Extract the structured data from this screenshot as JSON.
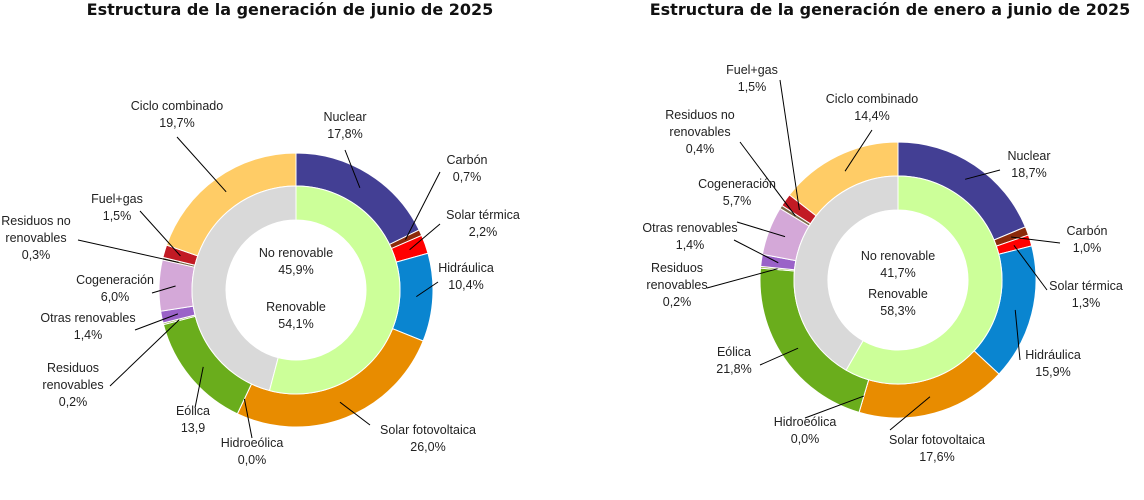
{
  "colors": {
    "Nuclear": "#433f94",
    "Carbón": "#8b2a0b",
    "Solar térmica": "#ff0000",
    "Hidráulica": "#0a85d0",
    "Solar fotovoltaica": "#e88c00",
    "Hidroeólica": "#6aa64a",
    "Eólica": "#6aad1c",
    "Residuos renovables": "#8da33a",
    "Otras renovables": "#9a62c8",
    "Cogeneración": "#d4a8d8",
    "Residuos no renovables": "#7b6a4a",
    "Fuel+gas": "#c21a24",
    "Ciclo combinado": "#ffcc66",
    "No renovable": "#d9d9d9",
    "Renovable": "#ccff99"
  },
  "chart_data": [
    {
      "type": "pie",
      "title": "Estructura de la generación de junio de 2025",
      "inner": [
        {
          "name": "No renovable",
          "value": 45.9,
          "label": "45,9%"
        },
        {
          "name": "Renovable",
          "value": 54.1,
          "label": "54,1%"
        }
      ],
      "outer": [
        {
          "name": "Nuclear",
          "value": 17.8,
          "label": "17,8%"
        },
        {
          "name": "Carbón",
          "value": 0.7,
          "label": "0,7%"
        },
        {
          "name": "Solar térmica",
          "value": 2.2,
          "label": "2,2%"
        },
        {
          "name": "Hidráulica",
          "value": 10.4,
          "label": "10,4%"
        },
        {
          "name": "Solar fotovoltaica",
          "value": 26.0,
          "label": "26,0%"
        },
        {
          "name": "Hidroeólica",
          "value": 0.0,
          "label": "0,0%"
        },
        {
          "name": "Eólica",
          "value": 13.9,
          "label": "13,9"
        },
        {
          "name": "Residuos renovables",
          "value": 0.2,
          "label": "0,2%"
        },
        {
          "name": "Otras renovables",
          "value": 1.4,
          "label": "1,4%"
        },
        {
          "name": "Cogeneración",
          "value": 6.0,
          "label": "6,0%"
        },
        {
          "name": "Residuos no renovables",
          "value": 0.3,
          "label": "0,3%"
        },
        {
          "name": "Fuel+gas",
          "value": 1.5,
          "label": "1,5%"
        },
        {
          "name": "Ciclo combinado",
          "value": 19.7,
          "label": "19,7%"
        }
      ]
    },
    {
      "type": "pie",
      "title": "Estructura de la generación de enero a junio de 2025",
      "inner": [
        {
          "name": "No renovable",
          "value": 41.7,
          "label": "41,7%"
        },
        {
          "name": "Renovable",
          "value": 58.3,
          "label": "58,3%"
        }
      ],
      "outer": [
        {
          "name": "Nuclear",
          "value": 18.7,
          "label": "18,7%"
        },
        {
          "name": "Carbón",
          "value": 1.0,
          "label": "1,0%"
        },
        {
          "name": "Solar térmica",
          "value": 1.3,
          "label": "1,3%"
        },
        {
          "name": "Hidráulica",
          "value": 15.9,
          "label": "15,9%"
        },
        {
          "name": "Solar fotovoltaica",
          "value": 17.6,
          "label": "17,6%"
        },
        {
          "name": "Hidroeólica",
          "value": 0.0,
          "label": "0,0%"
        },
        {
          "name": "Eólica",
          "value": 21.8,
          "label": "21,8%"
        },
        {
          "name": "Residuos renovables",
          "value": 0.2,
          "label": "0,2%"
        },
        {
          "name": "Otras renovables",
          "value": 1.4,
          "label": "1,4%"
        },
        {
          "name": "Cogeneración",
          "value": 5.7,
          "label": "5,7%"
        },
        {
          "name": "Residuos no renovables",
          "value": 0.4,
          "label": "0,4%"
        },
        {
          "name": "Fuel+gas",
          "value": 1.5,
          "label": "1,5%"
        },
        {
          "name": "Ciclo combinado",
          "value": 14.4,
          "label": "14,4%"
        }
      ]
    }
  ]
}
